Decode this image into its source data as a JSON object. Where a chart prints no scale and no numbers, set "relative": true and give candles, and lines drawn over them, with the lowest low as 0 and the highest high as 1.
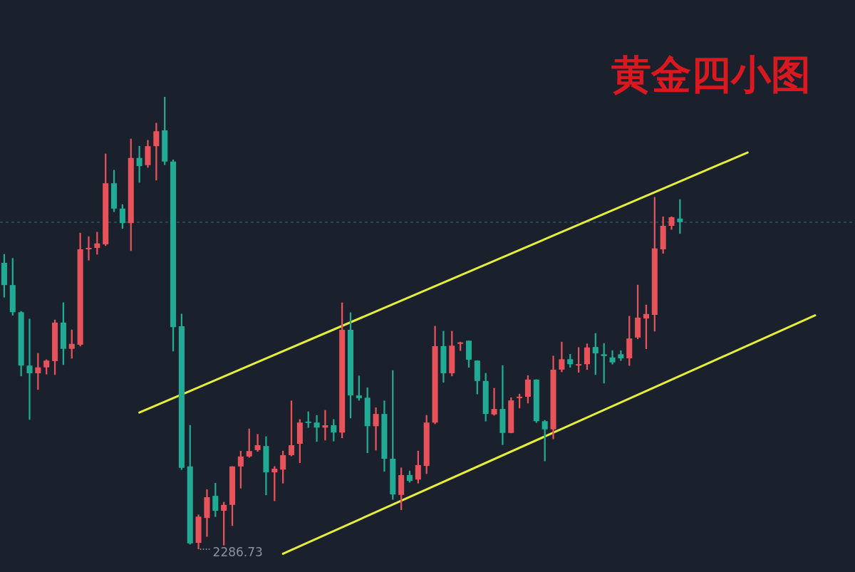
{
  "chart_data": {
    "type": "candlestick",
    "title": "黄金四小图",
    "relative": true,
    "tick_labels": false,
    "categories": [
      null,
      null,
      null,
      null,
      null,
      null,
      null,
      null,
      null,
      null,
      null,
      null,
      null,
      null,
      null,
      null,
      null,
      null,
      null,
      null,
      null,
      null,
      null,
      null,
      null,
      null,
      null,
      null,
      null,
      null,
      null,
      null,
      null,
      null,
      null,
      null,
      null,
      null,
      null,
      null,
      null,
      null,
      null,
      null,
      null,
      null,
      null,
      null,
      null,
      null,
      null,
      null,
      null,
      null,
      null,
      null,
      null,
      null,
      null,
      null,
      null,
      null,
      null,
      null,
      null,
      null,
      null,
      null,
      null,
      null,
      null,
      null,
      null,
      null,
      null,
      null,
      null,
      null,
      null,
      null,
      null,
      null,
      null,
      null,
      null,
      null,
      null,
      null,
      null,
      null,
      null,
      null,
      null,
      null,
      null,
      null,
      null
    ],
    "ohlc": [
      [
        0.633,
        0.652,
        0.557,
        0.584
      ],
      [
        0.584,
        0.643,
        0.517,
        0.524
      ],
      [
        0.524,
        0.526,
        0.383,
        0.406
      ],
      [
        0.406,
        0.509,
        0.287,
        0.389
      ],
      [
        0.389,
        0.433,
        0.353,
        0.402
      ],
      [
        0.402,
        0.419,
        0.387,
        0.417
      ],
      [
        0.416,
        0.507,
        0.386,
        0.501
      ],
      [
        0.501,
        0.545,
        0.408,
        0.443
      ],
      [
        0.443,
        0.485,
        0.422,
        0.454
      ],
      [
        0.452,
        0.699,
        0.449,
        0.663
      ],
      [
        0.663,
        0.691,
        0.639,
        0.666
      ],
      [
        0.666,
        0.701,
        0.652,
        0.676
      ],
      [
        0.674,
        0.874,
        0.671,
        0.809
      ],
      [
        0.809,
        0.838,
        0.746,
        0.753
      ],
      [
        0.753,
        0.762,
        0.709,
        0.721
      ],
      [
        0.721,
        0.907,
        0.66,
        0.865
      ],
      [
        0.865,
        0.891,
        0.811,
        0.847
      ],
      [
        0.849,
        0.904,
        0.844,
        0.891
      ],
      [
        0.891,
        0.942,
        0.816,
        0.924
      ],
      [
        0.926,
        1,
        0.85,
        0.857
      ],
      [
        0.857,
        0.861,
        0.438,
        0.491
      ],
      [
        0.493,
        0.52,
        0.176,
        0.18
      ],
      [
        0.183,
        0.274,
        0.011,
        0.013
      ],
      [
        0.014,
        0.076,
        0,
        0.072
      ],
      [
        0.069,
        0.132,
        0.028,
        0.115
      ],
      [
        0.118,
        0.146,
        0.072,
        0.085
      ],
      [
        0.085,
        0.104,
        0.009,
        0.098
      ],
      [
        0.098,
        0.183,
        0.052,
        0.183
      ],
      [
        0.183,
        0.217,
        0.135,
        0.205
      ],
      [
        0.205,
        0.266,
        0.203,
        0.217
      ],
      [
        0.219,
        0.254,
        0.216,
        0.23
      ],
      [
        0.228,
        0.249,
        0.12,
        0.17
      ],
      [
        0.17,
        0.183,
        0.107,
        0.178
      ],
      [
        0.176,
        0.217,
        0.146,
        0.208
      ],
      [
        0.208,
        0.328,
        0.206,
        0.23
      ],
      [
        0.233,
        0.287,
        0.191,
        0.28
      ],
      [
        0.282,
        0.304,
        0.269,
        0.279
      ],
      [
        0.28,
        0.296,
        0.238,
        0.269
      ],
      [
        0.269,
        0.307,
        0.241,
        0.274
      ],
      [
        0.274,
        0.287,
        0.239,
        0.258
      ],
      [
        0.258,
        0.545,
        0.246,
        0.485
      ],
      [
        0.485,
        0.523,
        0.29,
        0.34
      ],
      [
        0.34,
        0.383,
        0.329,
        0.334
      ],
      [
        0.335,
        0.357,
        0.213,
        0.272
      ],
      [
        0.272,
        0.313,
        0.219,
        0.299
      ],
      [
        0.299,
        0.328,
        0.172,
        0.2
      ],
      [
        0.2,
        0.395,
        0.11,
        0.121
      ],
      [
        0.12,
        0.18,
        0.087,
        0.164
      ],
      [
        0.164,
        0.173,
        0.148,
        0.151
      ],
      [
        0.154,
        0.217,
        0.146,
        0.186
      ],
      [
        0.184,
        0.296,
        0.167,
        0.28
      ],
      [
        0.28,
        0.493,
        0.277,
        0.449
      ],
      [
        0.449,
        0.482,
        0.369,
        0.389
      ],
      [
        0.389,
        0.482,
        0.383,
        0.45
      ],
      [
        0.454,
        0.458,
        0.439,
        0.457
      ],
      [
        0.461,
        0.461,
        0.402,
        0.419
      ],
      [
        0.417,
        0.417,
        0.343,
        0.372
      ],
      [
        0.372,
        0.389,
        0.283,
        0.299
      ],
      [
        0.298,
        0.356,
        0.296,
        0.31
      ],
      [
        0.31,
        0.406,
        0.231,
        0.257
      ],
      [
        0.257,
        0.335,
        0.257,
        0.329
      ],
      [
        0.334,
        0.343,
        0.312,
        0.337
      ],
      [
        0.337,
        0.384,
        0.323,
        0.375
      ],
      [
        0.375,
        0.375,
        0.28,
        0.283
      ],
      [
        0.283,
        0.285,
        0.195,
        0.265
      ],
      [
        0.265,
        0.427,
        0.244,
        0.397
      ],
      [
        0.397,
        0.458,
        0.392,
        0.42
      ],
      [
        0.42,
        0.431,
        0.402,
        0.409
      ],
      [
        0.406,
        0.446,
        0.391,
        0.409
      ],
      [
        0.409,
        0.454,
        0.397,
        0.446
      ],
      [
        0.447,
        0.477,
        0.386,
        0.433
      ],
      [
        0.431,
        0.455,
        0.367,
        0.427
      ],
      [
        0.424,
        0.439,
        0.409,
        0.413
      ],
      [
        0.431,
        0.439,
        0.417,
        0.422
      ],
      [
        0.422,
        0.515,
        0.406,
        0.466
      ],
      [
        0.468,
        0.584,
        0.465,
        0.512
      ],
      [
        0.51,
        0.54,
        0.443,
        0.52
      ],
      [
        0.518,
        0.778,
        0.482,
        0.665
      ],
      [
        0.663,
        0.735,
        0.654,
        0.715
      ],
      [
        0.715,
        0.735,
        0.707,
        0.734
      ],
      [
        0.731,
        0.773,
        0.698,
        0.723
      ],
      null,
      null,
      null,
      null,
      null,
      null,
      null,
      null,
      null,
      null,
      null,
      null,
      null,
      null,
      null,
      null
    ],
    "colors": [
      "#22ab94",
      "#22ab94",
      "#22ab94",
      "#22ab94",
      "#e8535b",
      "#e8535b",
      "#e8535b",
      "#22ab94",
      "#e8535b",
      "#e8535b",
      "#e8535b",
      "#e8535b",
      "#e8535b",
      "#22ab94",
      "#22ab94",
      "#e8535b",
      "#22ab94",
      "#e8535b",
      "#e8535b",
      "#22ab94",
      "#22ab94",
      "#22ab94",
      "#22ab94",
      "#e8535b",
      "#e8535b",
      "#22ab94",
      "#e8535b",
      "#e8535b",
      "#e8535b",
      "#e8535b",
      "#e8535b",
      "#22ab94",
      "#e8535b",
      "#e8535b",
      "#e8535b",
      "#e8535b",
      "#22ab94",
      "#22ab94",
      "#e8535b",
      "#22ab94",
      "#e8535b",
      "#22ab94",
      "#22ab94",
      "#22ab94",
      "#e8535b",
      "#22ab94",
      "#22ab94",
      "#e8535b",
      "#22ab94",
      "#e8535b",
      "#e8535b",
      "#e8535b",
      "#22ab94",
      "#e8535b",
      "#e8535b",
      "#22ab94",
      "#22ab94",
      "#22ab94",
      "#e8535b",
      "#22ab94",
      "#e8535b",
      "#e8535b",
      "#e8535b",
      "#22ab94",
      "#22ab94",
      "#e8535b",
      "#e8535b",
      "#22ab94",
      "#e8535b",
      "#e8535b",
      "#22ab94",
      "#22ab94",
      "#22ab94",
      "#22ab94",
      "#e8535b",
      "#e8535b",
      "#e8535b",
      "#e8535b",
      "#e8535b",
      "#e8535b",
      "#22ab94",
      null,
      null,
      null,
      null,
      null,
      null,
      null,
      null,
      null,
      null,
      null,
      null,
      null,
      null,
      null,
      null
    ],
    "series": [
      {
        "type": "line",
        "color": "#e4ee3b",
        "values": [
          null,
          null,
          null,
          null,
          null,
          null,
          null,
          null,
          null,
          null,
          null,
          null,
          null,
          null,
          null,
          null,
          0.302,
          null,
          null,
          null,
          null,
          null,
          null,
          null,
          null,
          null,
          null,
          null,
          null,
          null,
          null,
          null,
          null,
          null,
          null,
          null,
          null,
          null,
          null,
          null,
          null,
          null,
          null,
          null,
          null,
          null,
          null,
          null,
          null,
          null,
          null,
          null,
          null,
          null,
          null,
          null,
          null,
          null,
          null,
          null,
          null,
          null,
          null,
          null,
          null,
          null,
          null,
          null,
          null,
          null,
          null,
          null,
          null,
          null,
          null,
          null,
          null,
          null,
          null,
          null,
          null,
          null,
          null,
          null,
          null,
          null,
          null,
          null,
          0.877,
          null,
          null,
          null,
          null,
          null,
          null,
          null,
          null
        ]
      },
      {
        "type": "line",
        "color": "#e4ee3b",
        "values": [
          null,
          null,
          null,
          null,
          null,
          null,
          null,
          null,
          null,
          null,
          null,
          null,
          null,
          null,
          null,
          null,
          null,
          null,
          null,
          null,
          null,
          null,
          null,
          null,
          null,
          null,
          null,
          null,
          null,
          null,
          null,
          null,
          null,
          -0.01,
          null,
          null,
          null,
          null,
          null,
          null,
          null,
          null,
          null,
          null,
          null,
          null,
          null,
          null,
          null,
          null,
          null,
          null,
          null,
          null,
          null,
          null,
          null,
          null,
          null,
          null,
          null,
          null,
          null,
          null,
          null,
          null,
          null,
          null,
          null,
          null,
          null,
          null,
          null,
          null,
          null,
          null,
          null,
          null,
          null,
          null,
          null,
          null,
          null,
          null,
          null,
          null,
          null,
          null,
          null,
          null,
          null,
          null,
          null,
          null,
          null,
          null,
          0.517
        ]
      }
    ],
    "ref_lines": [
      {
        "axis": "y",
        "value": 0.723,
        "color": "#2c6f73",
        "line_style": "dashed"
      }
    ],
    "annotations": [
      "2286.73"
    ]
  }
}
